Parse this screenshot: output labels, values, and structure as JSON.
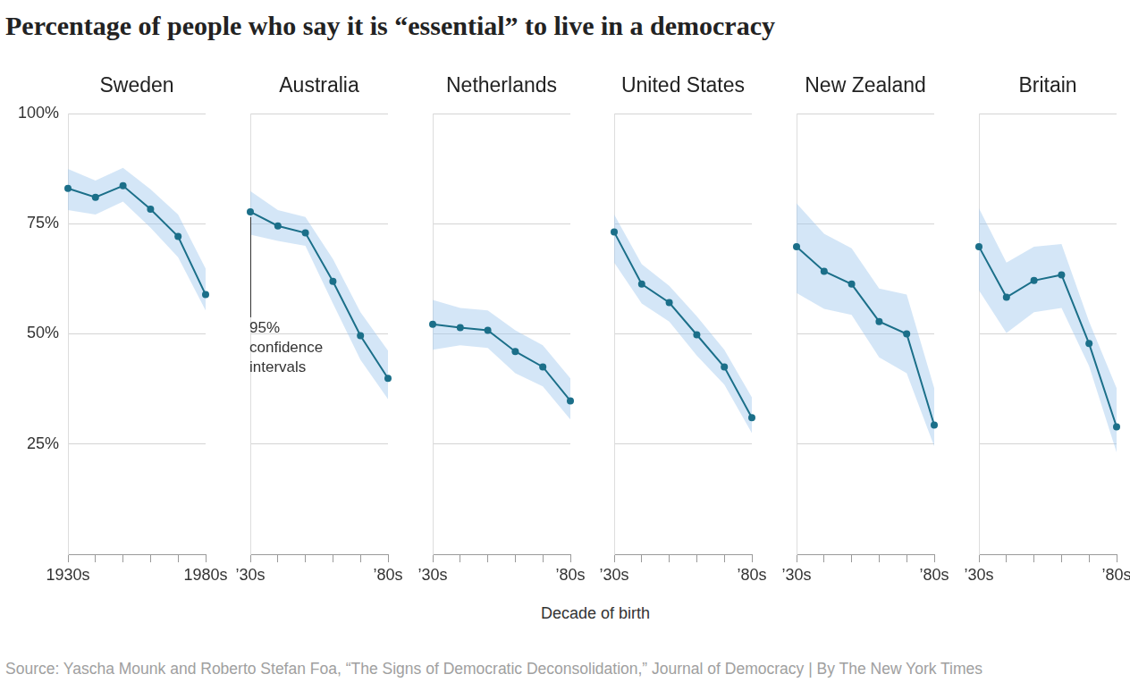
{
  "title": "Percentage of people who say it is “essential” to live in a democracy",
  "x_label": "Decade of birth",
  "source": "Source: Yascha Mounk and Roberto Stefan Foa, “The Signs of Democratic Deconsolidation,” Journal of Democracy | By The New York Times",
  "chart_data": [
    {
      "type": "line",
      "title": "Sweden",
      "categories": [
        "1930s",
        null,
        null,
        null,
        null,
        "1980s"
      ],
      "values": [
        83.0,
        81.0,
        83.6,
        78.3,
        72.1,
        58.9
      ],
      "lower": [
        78.1,
        77.1,
        80.0,
        74.1,
        67.4,
        55.3
      ],
      "upper": [
        87.4,
        84.8,
        87.7,
        82.8,
        77.1,
        64.8
      ],
      "color": "#1b6f89",
      "marker": "circle",
      "ylim": [
        0,
        100
      ],
      "yticks": [
        {
          "value": 25,
          "label": "25%"
        },
        {
          "value": 50,
          "label": "50%"
        },
        {
          "value": 75,
          "label": "75%"
        },
        {
          "value": 100,
          "label": "100%"
        }
      ],
      "grid": true
    },
    {
      "type": "line",
      "title": "Australia",
      "categories": [
        "’30s",
        null,
        null,
        null,
        null,
        "’80s"
      ],
      "values": [
        77.7,
        74.5,
        72.9,
        61.9,
        49.6,
        39.9
      ],
      "lower": [
        72.5,
        71.1,
        70.0,
        56.9,
        44.1,
        35.2
      ],
      "upper": [
        82.4,
        78.1,
        76.5,
        67.0,
        54.9,
        46.2
      ],
      "color": "#1b6f89",
      "marker": "circle",
      "ylim": [
        0,
        100
      ],
      "yticks": [
        {
          "value": 25,
          "label": "25%"
        },
        {
          "value": 50,
          "label": "50%"
        },
        {
          "value": 75,
          "label": "75%"
        },
        {
          "value": 100,
          "label": "100%"
        }
      ],
      "grid": true,
      "tick_labels": "x",
      "annotation": [
        "95%",
        "confidence",
        "intervals"
      ]
    },
    {
      "type": "line",
      "title": "Netherlands",
      "categories": [
        "’30s",
        null,
        null,
        null,
        null,
        "’80s"
      ],
      "values": [
        52.2,
        51.4,
        50.8,
        46.0,
        42.5,
        34.8
      ],
      "lower": [
        46.4,
        47.4,
        46.8,
        41.1,
        38.1,
        30.6
      ],
      "upper": [
        57.7,
        55.9,
        55.3,
        50.8,
        47.4,
        39.9
      ],
      "color": "#1b6f89",
      "marker": "circle",
      "ylim": [
        0,
        100
      ],
      "yticks": [
        {
          "value": 25,
          "label": "25%"
        },
        {
          "value": 50,
          "label": "50%"
        },
        {
          "value": 75,
          "label": "75%"
        },
        {
          "value": 100,
          "label": "100%"
        }
      ],
      "grid": true,
      "tick_labels": "x"
    },
    {
      "type": "line",
      "title": "United States",
      "categories": [
        "’30s",
        null,
        null,
        null,
        null,
        "’80s"
      ],
      "values": [
        73.1,
        61.3,
        57.1,
        49.8,
        42.5,
        31.0
      ],
      "lower": [
        66.2,
        56.9,
        52.8,
        45.1,
        38.5,
        27.5
      ],
      "upper": [
        77.1,
        65.8,
        60.9,
        54.0,
        46.4,
        35.6
      ],
      "color": "#1b6f89",
      "marker": "circle",
      "ylim": [
        0,
        100
      ],
      "yticks": [
        {
          "value": 25,
          "label": "25%"
        },
        {
          "value": 50,
          "label": "50%"
        },
        {
          "value": 75,
          "label": "75%"
        },
        {
          "value": 100,
          "label": "100%"
        }
      ],
      "grid": true,
      "tick_labels": "x"
    },
    {
      "type": "line",
      "title": "New Zealand",
      "categories": [
        "’30s",
        null,
        null,
        null,
        null,
        "’80s"
      ],
      "values": [
        69.8,
        64.2,
        61.3,
        52.8,
        50.0,
        29.3
      ],
      "lower": [
        59.3,
        55.7,
        54.3,
        44.7,
        41.1,
        24.5
      ],
      "upper": [
        79.6,
        72.7,
        69.4,
        60.3,
        58.9,
        37.7
      ],
      "color": "#1b6f89",
      "marker": "circle",
      "ylim": [
        0,
        100
      ],
      "yticks": [
        {
          "value": 25,
          "label": "25%"
        },
        {
          "value": 50,
          "label": "50%"
        },
        {
          "value": 75,
          "label": "75%"
        },
        {
          "value": 100,
          "label": "100%"
        }
      ],
      "grid": true,
      "tick_labels": "x"
    },
    {
      "type": "line",
      "title": "Britain",
      "categories": [
        "’30s",
        null,
        null,
        null,
        null,
        "’80s"
      ],
      "values": [
        69.8,
        58.3,
        62.1,
        63.4,
        47.8,
        28.9
      ],
      "lower": [
        59.9,
        50.2,
        54.9,
        55.9,
        42.7,
        23.1
      ],
      "upper": [
        78.5,
        66.2,
        69.8,
        70.4,
        52.8,
        37.7
      ],
      "color": "#1b6f89",
      "marker": "circle",
      "ylim": [
        0,
        100
      ],
      "yticks": [
        {
          "value": 25,
          "label": "25%"
        },
        {
          "value": 50,
          "label": "50%"
        },
        {
          "value": 75,
          "label": "75%"
        },
        {
          "value": 100,
          "label": "100%"
        }
      ],
      "grid": true,
      "tick_labels": "x"
    }
  ]
}
